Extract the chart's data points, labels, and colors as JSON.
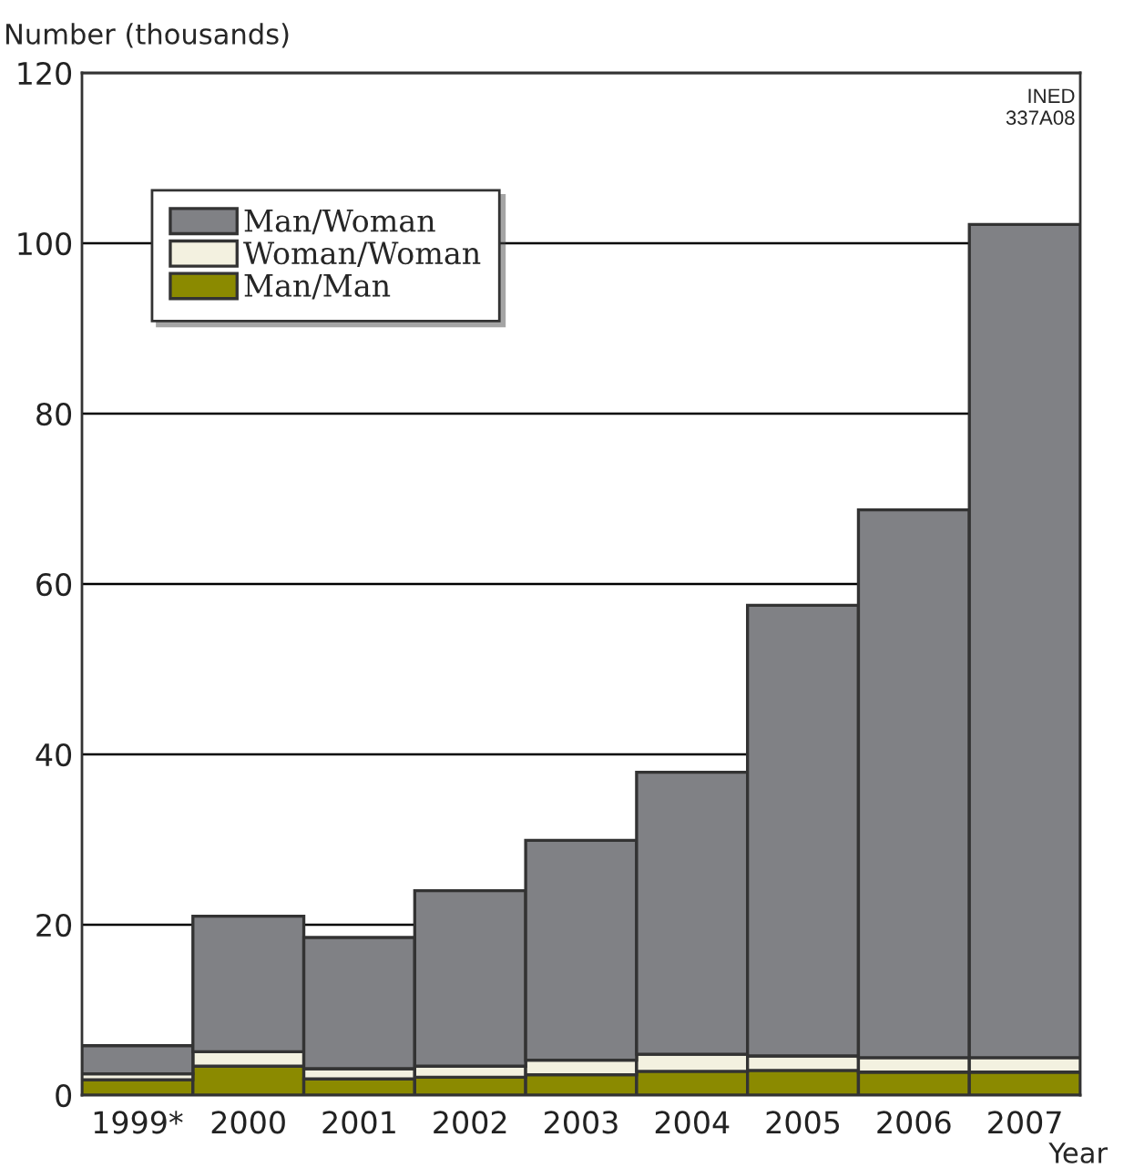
{
  "chart_data": {
    "type": "bar",
    "stacked": true,
    "ylabel": "Number (thousands)",
    "xlabel": "Year",
    "categories": [
      "1999*",
      "2000",
      "2001",
      "2002",
      "2003",
      "2004",
      "2005",
      "2006",
      "2007"
    ],
    "series": [
      {
        "name": "Man/Man",
        "color": "#8b8a00",
        "values": [
          1.8,
          3.4,
          1.9,
          2.1,
          2.4,
          2.8,
          2.9,
          2.7,
          2.7
        ]
      },
      {
        "name": "Woman/Woman",
        "color": "#f3f1e0",
        "values": [
          0.7,
          1.7,
          1.2,
          1.3,
          1.7,
          2.0,
          1.7,
          1.7,
          1.7
        ]
      },
      {
        "name": "Man/Woman",
        "color": "#808185",
        "values": [
          3.3,
          15.9,
          15.4,
          20.6,
          25.8,
          33.1,
          52.9,
          64.3,
          97.8
        ]
      }
    ],
    "ylim": [
      0,
      120
    ],
    "yticks": [
      0,
      20,
      40,
      60,
      80,
      100,
      120
    ],
    "grid": "y",
    "legend": "top left",
    "annotations": [
      "INED\n337A08"
    ]
  }
}
